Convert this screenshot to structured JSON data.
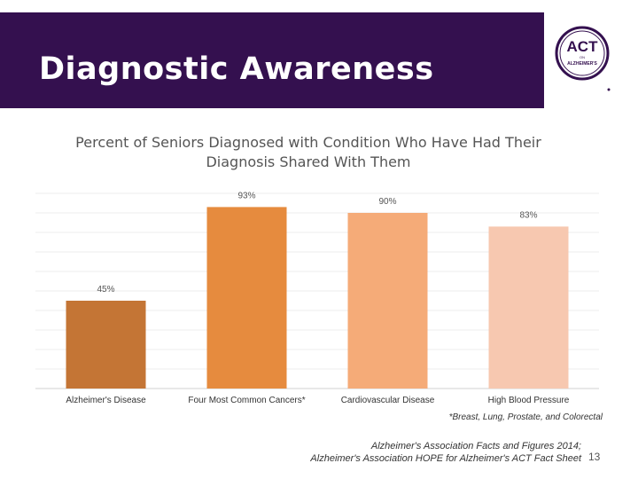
{
  "header": {
    "title": "Diagnostic Awareness"
  },
  "logo": {
    "main": "ACT",
    "small1": "ON",
    "small2": "ALZHEIMER'S",
    "color": "#34104f"
  },
  "chart_data": {
    "type": "bar",
    "title": "Percent of Seniors Diagnosed with Condition Who Have Had Their Diagnosis Shared With Them",
    "categories": [
      "Alzheimer's Disease",
      "Four Most Common Cancers*",
      "Cardiovascular Disease",
      "High Blood Pressure"
    ],
    "values": [
      45,
      93,
      90,
      83
    ],
    "data_labels": [
      "45%",
      "93%",
      "90%",
      "83%"
    ],
    "colors": [
      "#c47535",
      "#e68b3e",
      "#f5ab78",
      "#f7c8b0"
    ],
    "ylim": [
      0,
      100
    ],
    "grid": true,
    "xlabel": "",
    "ylabel": ""
  },
  "footnote": "*Breast, Lung, Prostate, and Colorectal",
  "source_line1": "Alzheimer's Association Facts and Figures 2014;",
  "source_line2": "Alzheimer's Association HOPE for Alzheimer's ACT Fact Sheet",
  "page_number": "13"
}
